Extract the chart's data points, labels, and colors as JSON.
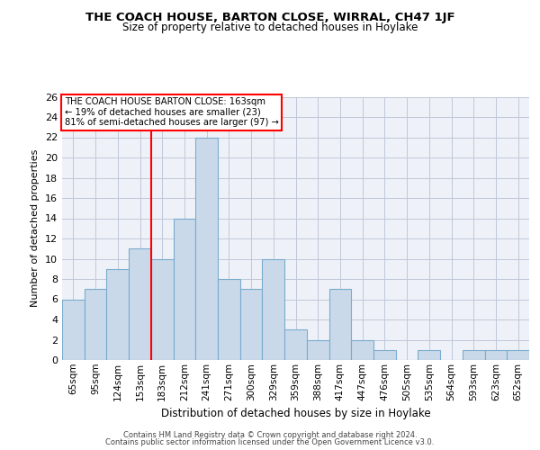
{
  "title": "THE COACH HOUSE, BARTON CLOSE, WIRRAL, CH47 1JF",
  "subtitle": "Size of property relative to detached houses in Hoylake",
  "xlabel": "Distribution of detached houses by size in Hoylake",
  "ylabel": "Number of detached properties",
  "categories": [
    "65sqm",
    "95sqm",
    "124sqm",
    "153sqm",
    "183sqm",
    "212sqm",
    "241sqm",
    "271sqm",
    "300sqm",
    "329sqm",
    "359sqm",
    "388sqm",
    "417sqm",
    "447sqm",
    "476sqm",
    "505sqm",
    "535sqm",
    "564sqm",
    "593sqm",
    "623sqm",
    "652sqm"
  ],
  "values": [
    6,
    7,
    9,
    11,
    10,
    14,
    22,
    8,
    7,
    10,
    3,
    2,
    7,
    2,
    1,
    0,
    1,
    0,
    1,
    1,
    1
  ],
  "bar_color": "#c9d9ea",
  "bar_edge_color": "#7aabce",
  "grid_color": "#c0c8d8",
  "background_color": "#eef2f8",
  "red_line_x": 3.5,
  "annotation_text": "THE COACH HOUSE BARTON CLOSE: 163sqm\n← 19% of detached houses are smaller (23)\n81% of semi-detached houses are larger (97) →",
  "footer1": "Contains HM Land Registry data © Crown copyright and database right 2024.",
  "footer2": "Contains public sector information licensed under the Open Government Licence v3.0.",
  "ylim": [
    0,
    26
  ],
  "yticks": [
    0,
    2,
    4,
    6,
    8,
    10,
    12,
    14,
    16,
    18,
    20,
    22,
    24,
    26
  ]
}
